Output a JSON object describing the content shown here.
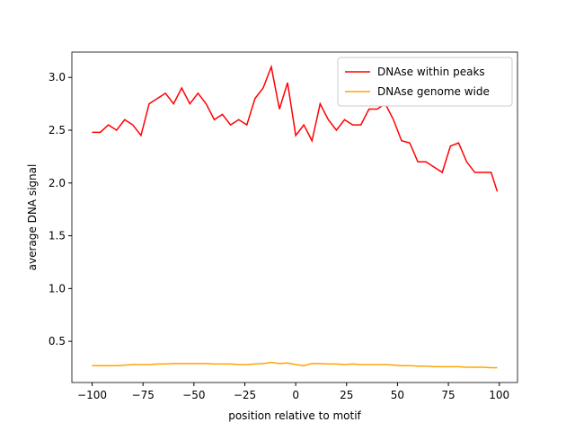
{
  "chart_data": {
    "type": "line",
    "xlabel": "position relative to motif",
    "ylabel": "average DNA signal",
    "x": [
      -100,
      -96,
      -92,
      -88,
      -84,
      -80,
      -76,
      -72,
      -68,
      -64,
      -60,
      -56,
      -52,
      -48,
      -44,
      -40,
      -36,
      -32,
      -28,
      -24,
      -20,
      -16,
      -12,
      -8,
      -4,
      0,
      4,
      8,
      12,
      16,
      20,
      24,
      28,
      32,
      36,
      40,
      44,
      48,
      52,
      56,
      60,
      64,
      68,
      72,
      76,
      80,
      84,
      88,
      92,
      96,
      99
    ],
    "series": [
      {
        "name": "DNAse within peaks",
        "color": "#ff0000",
        "values": [
          2.48,
          2.48,
          2.55,
          2.5,
          2.6,
          2.55,
          2.45,
          2.75,
          2.8,
          2.85,
          2.75,
          2.9,
          2.75,
          2.85,
          2.75,
          2.6,
          2.65,
          2.55,
          2.6,
          2.55,
          2.8,
          2.9,
          3.1,
          2.7,
          2.95,
          2.45,
          2.55,
          2.4,
          2.75,
          2.6,
          2.5,
          2.6,
          2.55,
          2.55,
          2.7,
          2.7,
          2.75,
          2.6,
          2.4,
          2.38,
          2.2,
          2.2,
          2.15,
          2.1,
          2.35,
          2.38,
          2.2,
          2.1,
          2.1,
          2.1,
          1.92
        ]
      },
      {
        "name": "DNAse genome wide",
        "color": "#ffa500",
        "values": [
          0.27,
          0.27,
          0.27,
          0.27,
          0.275,
          0.28,
          0.28,
          0.28,
          0.285,
          0.285,
          0.29,
          0.29,
          0.29,
          0.29,
          0.29,
          0.285,
          0.285,
          0.285,
          0.28,
          0.28,
          0.285,
          0.29,
          0.3,
          0.29,
          0.295,
          0.28,
          0.27,
          0.29,
          0.29,
          0.285,
          0.285,
          0.28,
          0.285,
          0.28,
          0.28,
          0.28,
          0.28,
          0.275,
          0.27,
          0.27,
          0.265,
          0.265,
          0.26,
          0.26,
          0.26,
          0.26,
          0.255,
          0.255,
          0.255,
          0.25,
          0.25
        ]
      }
    ],
    "xlim": [
      -109.95,
      108.95
    ],
    "ylim": [
      0.11,
      3.24
    ],
    "xticks": [
      {
        "value": -100,
        "label": "−100"
      },
      {
        "value": -75,
        "label": "−75"
      },
      {
        "value": -50,
        "label": "−50"
      },
      {
        "value": -25,
        "label": "−25"
      },
      0,
      25,
      50,
      75,
      100
    ],
    "yticks": [
      0.5,
      {
        "value": 1,
        "label": "1.0"
      },
      1.5,
      {
        "value": 2,
        "label": "2.0"
      },
      2.5,
      {
        "value": 3,
        "label": "3.0"
      }
    ],
    "legend": "upper right"
  }
}
